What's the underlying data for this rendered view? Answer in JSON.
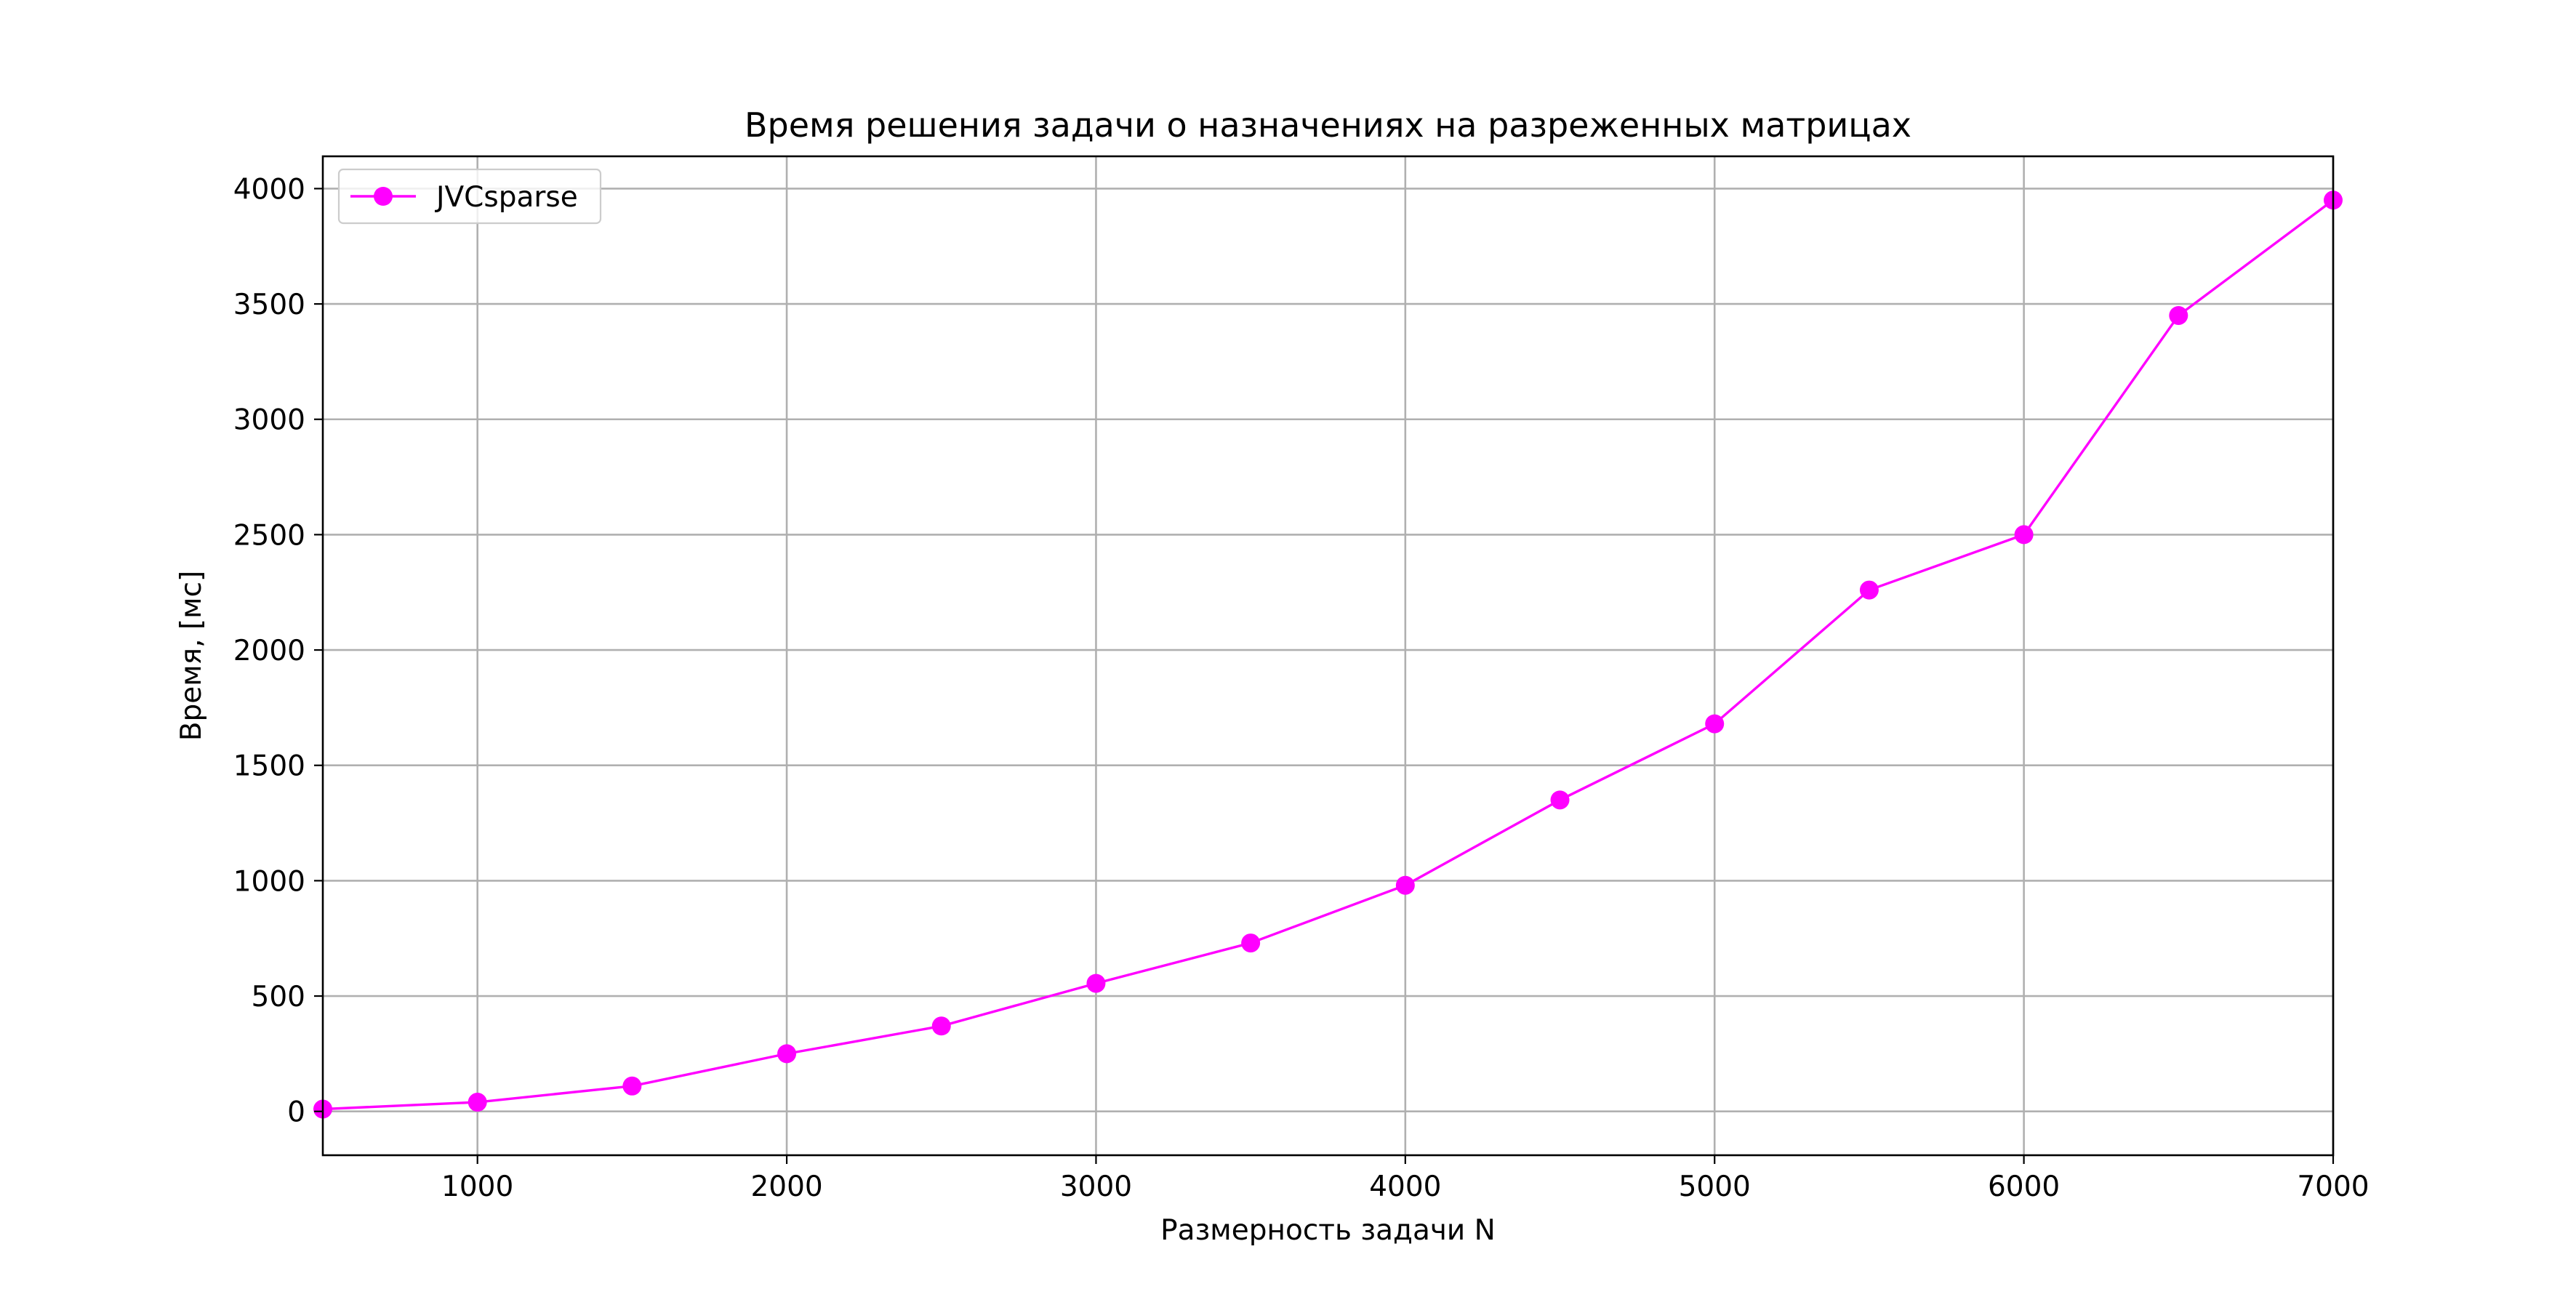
{
  "chart_data": {
    "type": "line",
    "title": "Время решения задачи о назначениях на разреженных матрицах",
    "xlabel": "Размерность задачи N",
    "ylabel": "Время, [мс]",
    "xlim": [
      500,
      7000
    ],
    "ylim": [
      -190,
      4140
    ],
    "x_ticks": [
      1000,
      2000,
      3000,
      4000,
      5000,
      6000,
      7000
    ],
    "y_ticks": [
      0,
      500,
      1000,
      1500,
      2000,
      2500,
      3000,
      3500,
      4000
    ],
    "grid": true,
    "legend_position": "upper-left",
    "series": [
      {
        "name": "JVCsparse",
        "color": "#ff00ff",
        "marker": "circle",
        "x": [
          500,
          1000,
          1500,
          2000,
          2500,
          3000,
          3500,
          4000,
          4500,
          5000,
          5500,
          6000,
          6500,
          7000
        ],
        "y": [
          10,
          40,
          110,
          250,
          370,
          555,
          730,
          980,
          1350,
          1680,
          2260,
          2500,
          3450,
          3950
        ]
      }
    ]
  }
}
